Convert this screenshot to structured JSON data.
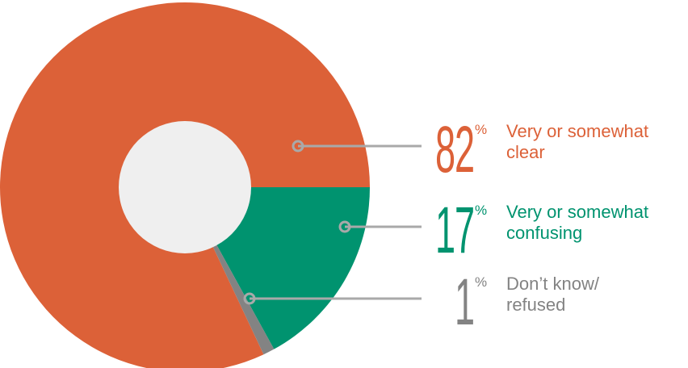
{
  "chart_data": {
    "type": "donut",
    "categories": [
      "Very or somewhat\nclear",
      "Very or somewhat\nconfusing",
      "Don’t know/\nrefused"
    ],
    "values": [
      82,
      17,
      1
    ],
    "unit": "%",
    "colors": [
      "#dc6138",
      "#00936f",
      "#838383"
    ]
  }
}
